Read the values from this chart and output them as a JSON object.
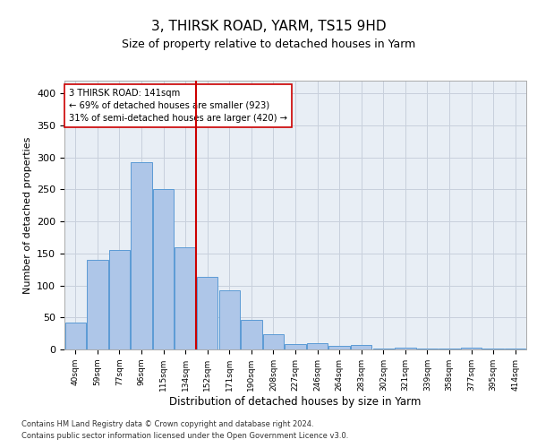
{
  "title1": "3, THIRSK ROAD, YARM, TS15 9HD",
  "title2": "Size of property relative to detached houses in Yarm",
  "xlabel": "Distribution of detached houses by size in Yarm",
  "ylabel": "Number of detached properties",
  "bar_color": "#aec6e8",
  "bar_edge_color": "#5b9bd5",
  "categories": [
    "40sqm",
    "59sqm",
    "77sqm",
    "96sqm",
    "115sqm",
    "134sqm",
    "152sqm",
    "171sqm",
    "190sqm",
    "208sqm",
    "227sqm",
    "246sqm",
    "264sqm",
    "283sqm",
    "302sqm",
    "321sqm",
    "339sqm",
    "358sqm",
    "377sqm",
    "395sqm",
    "414sqm"
  ],
  "values": [
    42,
    140,
    155,
    292,
    251,
    160,
    113,
    92,
    46,
    24,
    8,
    10,
    5,
    7,
    2,
    3,
    2,
    2,
    3,
    2,
    2
  ],
  "vline_x": 5.5,
  "vline_color": "#cc0000",
  "annotation_line1": "3 THIRSK ROAD: 141sqm",
  "annotation_line2": "← 69% of detached houses are smaller (923)",
  "annotation_line3": "31% of semi-detached houses are larger (420) →",
  "annotation_box_color": "white",
  "annotation_box_edge": "#cc0000",
  "ylim": [
    0,
    420
  ],
  "yticks": [
    0,
    50,
    100,
    150,
    200,
    250,
    300,
    350,
    400
  ],
  "grid_color": "#c8d0dc",
  "footnote1": "Contains HM Land Registry data © Crown copyright and database right 2024.",
  "footnote2": "Contains public sector information licensed under the Open Government Licence v3.0.",
  "bg_color": "#e8eef5"
}
